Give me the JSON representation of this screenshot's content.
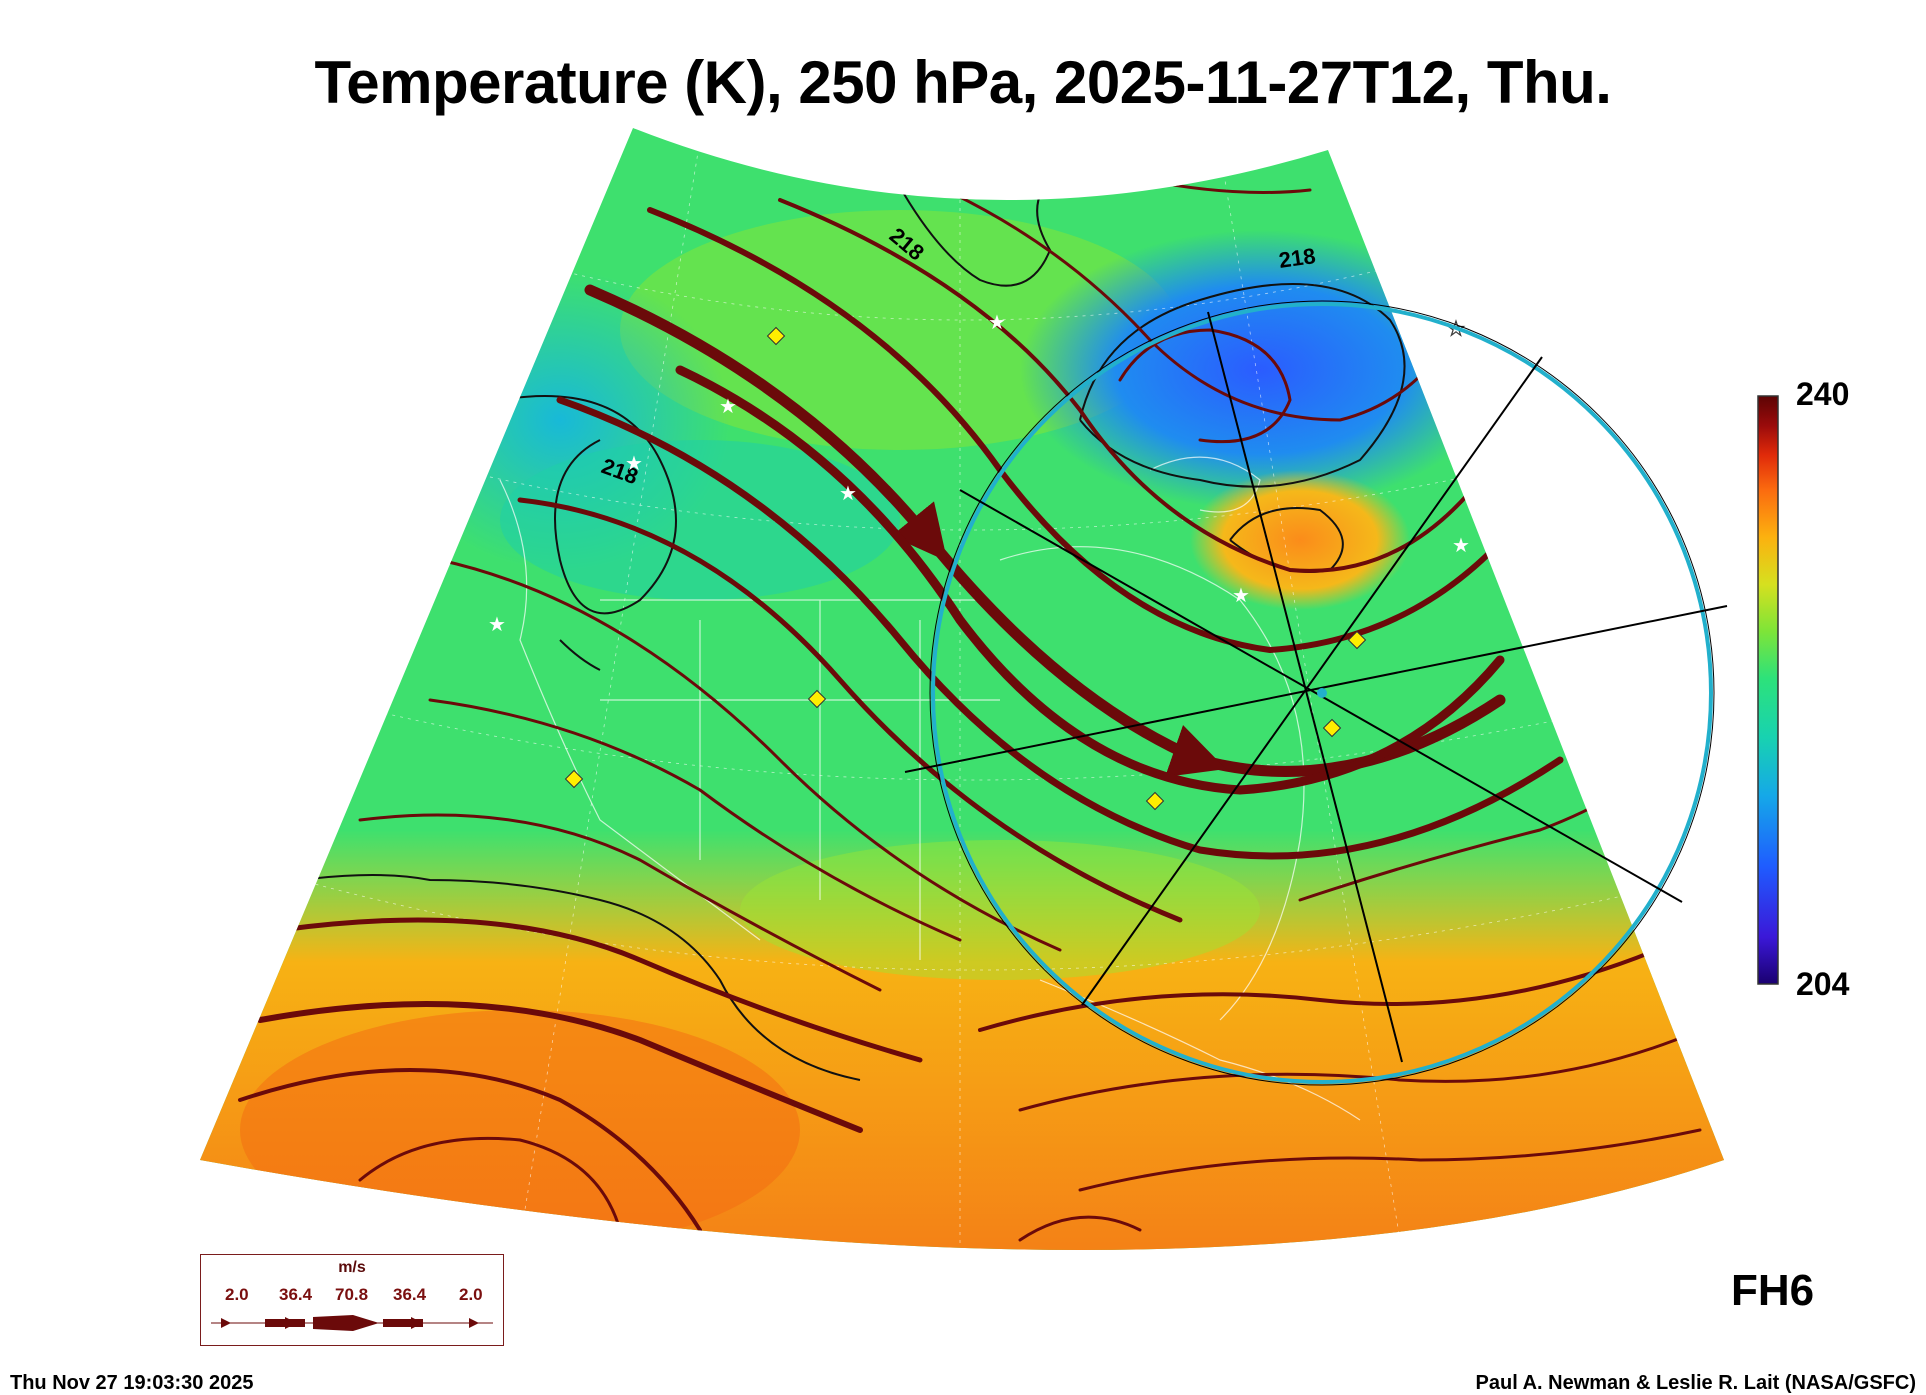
{
  "title": "Temperature (K), 250 hPa, 2025-11-27T12, Thu.",
  "colorbar": {
    "max_label": "240",
    "min_label": "204",
    "range": [
      204,
      240
    ],
    "colormap": [
      "#1a0070",
      "#3b18d8",
      "#1f5cff",
      "#15a8e8",
      "#18d2b0",
      "#2de27a",
      "#7ee438",
      "#d6e01f",
      "#fcb10f",
      "#fb6b0f",
      "#e02a0a",
      "#9a0b0b",
      "#5c0404"
    ]
  },
  "contours": [
    {
      "label": "218"
    },
    {
      "label": "218"
    },
    {
      "label": "218"
    }
  ],
  "legend": {
    "unit": "m/s",
    "values": [
      "2.0",
      "36.4",
      "70.8",
      "36.4",
      "2.0"
    ],
    "color": "#6b0a0a"
  },
  "forecast_hour": "FH6",
  "footer": {
    "timestamp": "Thu Nov 27 19:03:30 2025",
    "credit": "Paul A. Newman & Leslie R. Lait (NASA/GSFC)"
  },
  "overlay": {
    "circle_color": "#22b0cc",
    "line_color": "#000000",
    "streamline_color": "#6b0a0a",
    "marker_diamond_color": "#ffee00",
    "marker_star_color": "#ffffff"
  }
}
